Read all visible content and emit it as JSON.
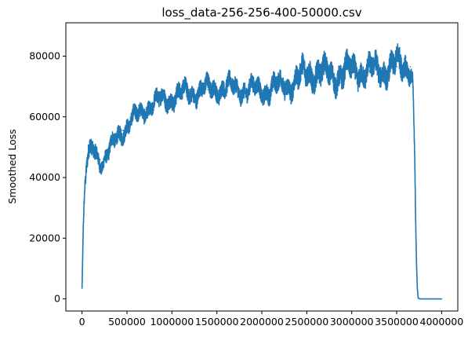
{
  "chart_data": {
    "type": "line",
    "title": "loss_data-256-256-400-50000.csv",
    "xlabel": "",
    "ylabel": "Smoothed Loss",
    "xlim": [
      -180000,
      4180000
    ],
    "ylim": [
      -4000,
      91000
    ],
    "xticks": [
      0,
      500000,
      1000000,
      1500000,
      2000000,
      2500000,
      3000000,
      3500000,
      4000000
    ],
    "xtick_labels": [
      "0",
      "500000",
      "1000000",
      "1500000",
      "2000000",
      "2500000",
      "3000000",
      "3500000",
      "4000000"
    ],
    "yticks": [
      0,
      20000,
      40000,
      60000,
      80000
    ],
    "ytick_labels": [
      "0",
      "20000",
      "40000",
      "60000",
      "80000"
    ],
    "grid": false,
    "legend": "none",
    "line_color": "#1f77b4",
    "series": [
      {
        "x": [
          0,
          15000,
          30000,
          50000,
          80000,
          120000,
          150000,
          200000,
          230000,
          260000,
          300000,
          350000,
          400000,
          450000,
          500000,
          600000,
          700000,
          800000,
          900000,
          1000000,
          1100000,
          1200000,
          1300000,
          1400000,
          1500000,
          1600000,
          1700000,
          1800000,
          1900000,
          2000000,
          2100000,
          2200000,
          2300000,
          2400000,
          2500000,
          2600000,
          2700000,
          2800000,
          2900000,
          3000000,
          3100000,
          3200000,
          3300000,
          3400000,
          3500000,
          3550000,
          3600000,
          3650000,
          3680000,
          3700000,
          3710000,
          3720000,
          3730000,
          3740000,
          3760000,
          3800000,
          4000000
        ],
        "values": [
          3500,
          24000,
          36000,
          43000,
          47000,
          50000,
          49000,
          46000,
          44500,
          46500,
          48000,
          51000,
          54000,
          55500,
          57000,
          60000,
          62500,
          64500,
          65500,
          66500,
          67500,
          68000,
          68500,
          69000,
          69500,
          69500,
          69500,
          69000,
          69000,
          68500,
          69500,
          70000,
          71000,
          72000,
          74500,
          75000,
          74000,
          73500,
          74500,
          75000,
          75500,
          75000,
          75500,
          76000,
          76500,
          77000,
          77000,
          76500,
          72000,
          48000,
          28000,
          12000,
          3000,
          200,
          0,
          0,
          0
        ],
        "band": [
          0,
          2500,
          3500,
          4500,
          5000,
          4500,
          4500,
          4000,
          4000,
          4000,
          4500,
          4500,
          4500,
          4500,
          4500,
          4500,
          4500,
          4500,
          5000,
          5000,
          5000,
          5000,
          5000,
          5000,
          5000,
          5000,
          5000,
          5000,
          5000,
          5000,
          5500,
          5500,
          6000,
          6500,
          7000,
          7000,
          6500,
          6500,
          7000,
          6500,
          6500,
          6500,
          6500,
          6500,
          7000,
          7000,
          6500,
          6000,
          3000,
          2500,
          2000,
          1500,
          800,
          0,
          0,
          0,
          0
        ]
      }
    ]
  }
}
